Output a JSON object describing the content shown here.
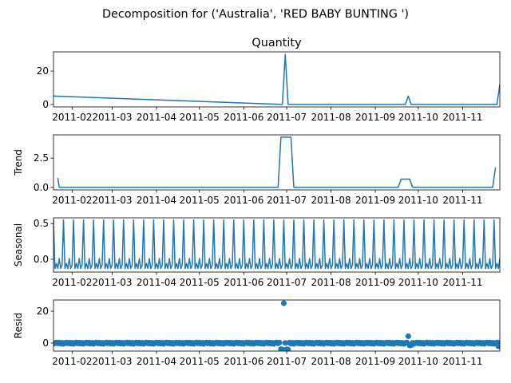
{
  "figure_title": "Decomposition for ('Australia', 'RED BABY BUNTING ')",
  "color": "#1f77b4",
  "chart_data": [
    {
      "type": "line",
      "panel": "observed",
      "title": "Quantity",
      "ylabel": "",
      "ylim": [
        -1.5,
        31.5
      ],
      "yticks": [
        0,
        20
      ],
      "ytick_labels": [
        "0",
        "20"
      ],
      "x_dates": [
        "2011-01-19",
        "2011-06-28",
        "2011-06-30",
        "2011-07-02",
        "2011-09-22",
        "2011-09-24",
        "2011-09-26",
        "2011-11-25",
        "2011-11-27"
      ],
      "x": [
        0,
        160,
        162,
        164,
        246,
        248,
        250,
        310,
        312
      ],
      "values": [
        5,
        0,
        30,
        0,
        0,
        5,
        0,
        0,
        12
      ],
      "xlim": [
        0,
        312
      ]
    },
    {
      "type": "line",
      "panel": "trend",
      "title": "",
      "ylabel": "Trend",
      "ylim": [
        -0.22,
        4.5
      ],
      "yticks": [
        0.0,
        2.5
      ],
      "ytick_labels": [
        "0.0",
        "2.5"
      ],
      "x": [
        3,
        4,
        157,
        159,
        166,
        168,
        241,
        243,
        249,
        251,
        307,
        309
      ],
      "values": [
        0.8,
        0.0,
        0.0,
        4.3,
        4.3,
        0.0,
        0.0,
        0.7,
        0.7,
        0.0,
        0.0,
        1.7
      ],
      "xlim": [
        0,
        312
      ]
    },
    {
      "type": "line",
      "panel": "seasonal",
      "title": "",
      "ylabel": "Seasonal",
      "ylim": [
        -0.18,
        0.58
      ],
      "yticks": [
        0.0,
        0.5
      ],
      "ytick_labels": [
        "0.0",
        "0.5"
      ],
      "period": 7,
      "pattern": [
        0.55,
        -0.13,
        -0.06,
        -0.13,
        0.01,
        -0.13,
        -0.08
      ],
      "xlim": [
        0,
        312
      ]
    },
    {
      "type": "scatter",
      "panel": "resid",
      "title": "",
      "ylabel": "Resid",
      "ylim": [
        -5,
        27
      ],
      "yticks": [
        0,
        20
      ],
      "ytick_labels": [
        "0",
        "20"
      ],
      "baseline": [
        -0.5,
        0.1,
        0.4,
        -0.2,
        0.3,
        -0.4,
        0.2
      ],
      "outliers": [
        {
          "x": 159,
          "y": -3.8
        },
        {
          "x": 160,
          "y": -4.0
        },
        {
          "x": 161,
          "y": 25
        },
        {
          "x": 163,
          "y": -3.9
        },
        {
          "x": 164,
          "y": -4.0
        },
        {
          "x": 248,
          "y": 4.3
        },
        {
          "x": 249,
          "y": -1.5
        },
        {
          "x": 250,
          "y": -1.3
        },
        {
          "x": 311,
          "y": -2.0
        }
      ],
      "xlim": [
        0,
        312
      ]
    }
  ],
  "x_axis": {
    "tick_x": [
      13,
      41,
      72,
      102,
      133,
      163,
      194,
      225,
      255,
      286
    ],
    "tick_labels": [
      "2011-02",
      "2011-03",
      "2011-04",
      "2011-05",
      "2011-06",
      "2011-07",
      "2011-08",
      "2011-09",
      "2011-10",
      "2011-11"
    ]
  }
}
